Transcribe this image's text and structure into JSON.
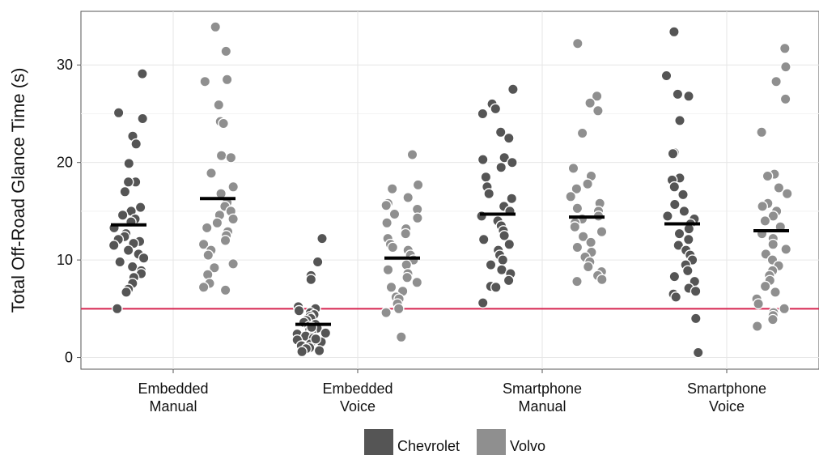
{
  "chart_data": {
    "type": "scatter",
    "ylabel": "Total Off-Road Glance Time (s)",
    "ylim": [
      -1.2,
      35.5
    ],
    "yticks": [
      "0",
      "10",
      "20",
      "30"
    ],
    "ytick_values": [
      0,
      10,
      20,
      30
    ],
    "categories": [
      [
        "Embedded",
        "Manual"
      ],
      [
        "Embedded",
        "Voice"
      ],
      [
        "Smartphone",
        "Manual"
      ],
      [
        "Smartphone",
        "Voice"
      ]
    ],
    "reference_line": {
      "y": 5,
      "color": "#d6244f"
    },
    "grid": true,
    "legend_position": "bottom",
    "series": [
      {
        "name": "Chevrolet",
        "color": "#555555",
        "means": [
          13.6,
          3.4,
          14.7,
          13.7
        ],
        "points": [
          [
            29.1,
            25.1,
            24.5,
            22.7,
            21.9,
            19.9,
            18.0,
            18.0,
            17.0,
            15.4,
            15.0,
            14.6,
            14.2,
            13.9,
            13.3,
            12.7,
            12.4,
            12.1,
            11.9,
            11.7,
            11.5,
            11.0,
            10.6,
            10.2,
            9.8,
            9.3,
            8.9,
            8.6,
            8.2,
            7.6,
            7.0,
            6.7,
            5.0
          ],
          [
            12.2,
            9.8,
            8.4,
            8.0,
            5.2,
            5.0,
            4.8,
            4.6,
            4.4,
            4.2,
            4.0,
            3.8,
            3.6,
            3.4,
            3.2,
            3.0,
            2.8,
            2.6,
            2.4,
            2.2,
            2.0,
            1.8,
            1.6,
            1.4,
            1.2,
            1.0,
            0.9,
            0.7,
            0.6,
            2.5,
            3.1,
            1.9
          ],
          [
            27.5,
            26.0,
            25.5,
            25.0,
            23.1,
            22.5,
            20.5,
            20.3,
            20.0,
            19.5,
            18.5,
            16.3,
            15.5,
            15.0,
            14.5,
            14.0,
            13.5,
            13.0,
            12.5,
            12.1,
            11.6,
            11.0,
            10.5,
            10.0,
            9.5,
            9.0,
            8.6,
            7.9,
            7.3,
            7.2,
            5.6,
            17.5,
            16.8
          ],
          [
            33.4,
            28.9,
            27.0,
            26.8,
            24.3,
            21.0,
            20.9,
            18.4,
            18.2,
            17.5,
            16.7,
            15.7,
            15.0,
            14.5,
            14.2,
            13.7,
            13.2,
            12.7,
            12.1,
            11.5,
            11.0,
            10.5,
            10.0,
            9.5,
            8.9,
            8.3,
            7.8,
            7.1,
            6.8,
            6.5,
            6.2,
            4.0,
            0.5
          ]
        ]
      },
      {
        "name": "Volvo",
        "color": "#8f8f8f",
        "means": [
          16.3,
          10.2,
          14.4,
          13.0
        ],
        "points": [
          [
            33.9,
            31.4,
            28.5,
            28.3,
            25.9,
            24.2,
            24.0,
            20.7,
            20.5,
            18.9,
            17.5,
            16.8,
            15.9,
            15.5,
            15.0,
            14.6,
            14.2,
            13.8,
            13.3,
            12.9,
            12.5,
            12.0,
            11.6,
            11.0,
            10.5,
            9.6,
            9.2,
            8.5,
            7.6,
            7.2,
            6.9
          ],
          [
            20.8,
            17.7,
            17.3,
            16.4,
            15.8,
            15.6,
            15.2,
            14.7,
            14.3,
            13.8,
            13.2,
            12.7,
            12.2,
            11.6,
            11.3,
            11.0,
            10.5,
            10.0,
            9.5,
            9.0,
            8.6,
            8.2,
            7.7,
            7.2,
            6.8,
            6.2,
            6.0,
            5.5,
            5.0,
            4.6,
            2.1
          ],
          [
            32.2,
            26.8,
            26.1,
            25.3,
            23.0,
            19.4,
            18.6,
            17.8,
            17.3,
            16.5,
            15.8,
            15.3,
            15.0,
            14.5,
            14.2,
            13.8,
            13.4,
            12.9,
            12.4,
            11.8,
            11.3,
            10.8,
            10.3,
            9.8,
            9.3,
            8.8,
            8.4,
            8.0,
            7.8
          ],
          [
            31.7,
            29.8,
            28.3,
            26.5,
            23.1,
            18.8,
            18.6,
            17.4,
            16.8,
            15.8,
            15.5,
            15.0,
            14.5,
            14.0,
            13.4,
            12.7,
            12.2,
            11.6,
            11.1,
            10.6,
            10.0,
            9.4,
            8.9,
            8.4,
            7.9,
            7.3,
            6.7,
            6.0,
            5.5,
            5.0,
            4.6,
            4.3,
            3.9,
            3.2
          ]
        ]
      }
    ]
  }
}
